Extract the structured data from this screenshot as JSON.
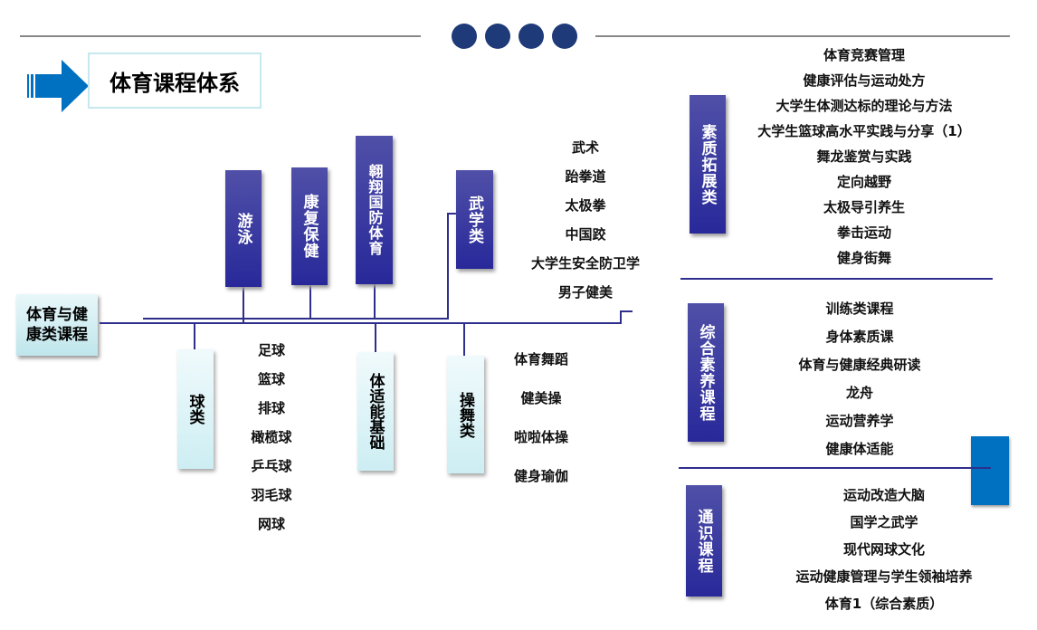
{
  "title": "体育课程体系",
  "root": "体育与健康类课程",
  "colors": {
    "navy": "#28289a",
    "accent": "#0070c0",
    "dots": "#1f3a78"
  },
  "top_categories": [
    "游泳",
    "康复保健",
    "翱翔国防体育",
    "武学类"
  ],
  "bottom_categories": [
    "球类",
    "体适能基础",
    "操舞类"
  ],
  "martial_list": [
    "武术",
    "跆拳道",
    "太极拳",
    "中国跤",
    "大学生安全防卫学",
    "男子健美"
  ],
  "ball_list": [
    "足球",
    "篮球",
    "排球",
    "橄榄球",
    "乒乓球",
    "羽毛球",
    "网球"
  ],
  "dance_list": [
    "体育舞蹈",
    "健美操",
    "啦啦体操",
    "健身瑜伽"
  ],
  "quality": {
    "label": "素质拓展类",
    "items": [
      "体育竞赛管理",
      "健康评估与运动处方",
      "大学生体测达标的理论与方法",
      "大学生篮球高水平实践与分享（1）",
      "舞龙鉴赏与实践",
      "定向越野",
      "太极导引养生",
      "拳击运动",
      "健身街舞"
    ]
  },
  "comprehensive": {
    "label": "综合素养课程",
    "items": [
      "训练类课程",
      "身体素质课",
      "体育与健康经典研读",
      "龙舟",
      "运动营养学",
      "健康体适能"
    ]
  },
  "general": {
    "label": "通识课程",
    "items": [
      "运动改造大脑",
      "国学之武学",
      "现代网球文化",
      "运动健康管理与学生领袖培养",
      "体育1（综合素质）"
    ]
  }
}
